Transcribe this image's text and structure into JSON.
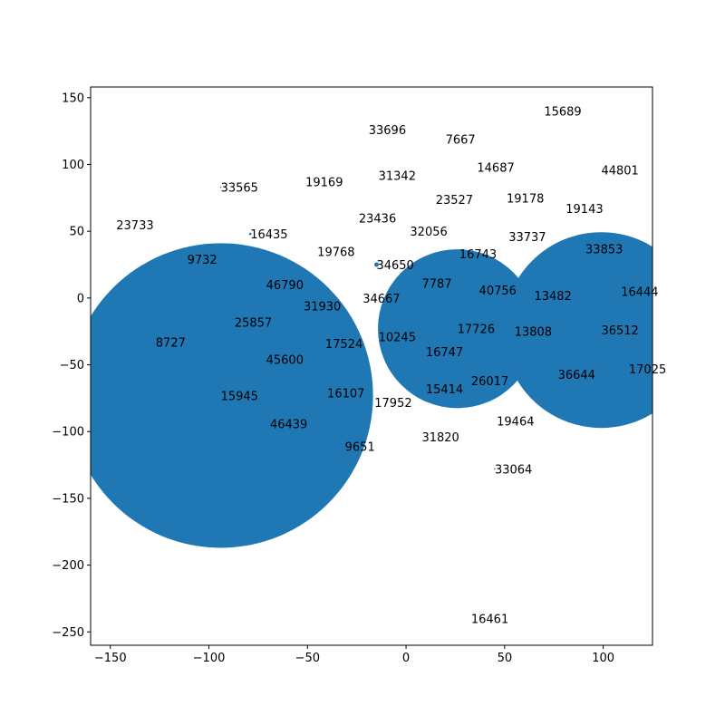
{
  "chart_data": {
    "type": "scatter",
    "title": "",
    "xlabel": "",
    "ylabel": "",
    "xlim": [
      -160,
      125
    ],
    "ylim": [
      -260,
      158
    ],
    "x_ticks": [
      -150,
      -100,
      -50,
      0,
      50,
      100
    ],
    "y_ticks": [
      150,
      100,
      50,
      0,
      -50,
      -100,
      -150,
      -200,
      -250
    ],
    "grid": false,
    "color": "#1f77b4",
    "points": [
      {
        "label": "15689",
        "x": 70,
        "y": 140,
        "size": 0
      },
      {
        "label": "33696",
        "x": -19,
        "y": 126,
        "size": 0
      },
      {
        "label": "7667",
        "x": 20,
        "y": 119,
        "size": 0
      },
      {
        "label": "44801",
        "x": 99,
        "y": 96,
        "size": 0
      },
      {
        "label": "14687",
        "x": 36,
        "y": 98,
        "size": 0
      },
      {
        "label": "31342",
        "x": -14,
        "y": 92,
        "size": 0
      },
      {
        "label": "33565",
        "x": -94,
        "y": 83,
        "size": 1
      },
      {
        "label": "19169",
        "x": -51,
        "y": 87,
        "size": 0
      },
      {
        "label": "19178",
        "x": 51,
        "y": 75,
        "size": 0
      },
      {
        "label": "23527",
        "x": 15,
        "y": 74,
        "size": 0
      },
      {
        "label": "19143",
        "x": 81,
        "y": 67,
        "size": 0
      },
      {
        "label": "23733",
        "x": -147,
        "y": 55,
        "size": 0
      },
      {
        "label": "23436",
        "x": -24,
        "y": 60,
        "size": 0
      },
      {
        "label": "16435",
        "x": -79,
        "y": 48,
        "size": 3
      },
      {
        "label": "32056",
        "x": 2,
        "y": 50,
        "size": 0
      },
      {
        "label": "33737",
        "x": 52,
        "y": 46,
        "size": 0
      },
      {
        "label": "33853",
        "x": 91,
        "y": 37,
        "size": 0
      },
      {
        "label": "19768",
        "x": -45,
        "y": 35,
        "size": 0
      },
      {
        "label": "16743",
        "x": 27,
        "y": 33,
        "size": 0
      },
      {
        "label": "9732",
        "x": -111,
        "y": 29,
        "size": 0
      },
      {
        "label": "34650",
        "x": -15,
        "y": 25,
        "size": 10
      },
      {
        "label": "46790",
        "x": -71,
        "y": 10,
        "size": 0
      },
      {
        "label": "7787",
        "x": 8,
        "y": 11,
        "size": 0
      },
      {
        "label": "40756",
        "x": 37,
        "y": 6,
        "size": 0
      },
      {
        "label": "13482",
        "x": 65,
        "y": 2,
        "size": 40
      },
      {
        "label": "16444",
        "x": 109,
        "y": 5,
        "size": 0
      },
      {
        "label": "34667",
        "x": -22,
        "y": 0,
        "size": 0
      },
      {
        "label": "31930",
        "x": -52,
        "y": -6,
        "size": 0
      },
      {
        "label": "25857",
        "x": -87,
        "y": -18,
        "size": 0
      },
      {
        "label": "17726",
        "x": 26,
        "y": -23,
        "size": 12500
      },
      {
        "label": "36512",
        "x": 99,
        "y": -24,
        "size": 19000
      },
      {
        "label": "8727",
        "x": -127,
        "y": -33,
        "size": 0
      },
      {
        "label": "13808",
        "x": 55,
        "y": -25,
        "size": 0
      },
      {
        "label": "10245",
        "x": -14,
        "y": -29,
        "size": 0
      },
      {
        "label": "17524",
        "x": -41,
        "y": -34,
        "size": 0
      },
      {
        "label": "16747",
        "x": 10,
        "y": -40,
        "size": 0
      },
      {
        "label": "45600",
        "x": -71,
        "y": -46,
        "size": 0
      },
      {
        "label": "36644",
        "x": 77,
        "y": -57,
        "size": 2
      },
      {
        "label": "17025",
        "x": 113,
        "y": -53,
        "size": 0
      },
      {
        "label": "26017",
        "x": 33,
        "y": -62,
        "size": 0
      },
      {
        "label": "15414",
        "x": 10,
        "y": -68,
        "size": 0
      },
      {
        "label": "15945",
        "x": -94,
        "y": -73,
        "size": 46000
      },
      {
        "label": "16107",
        "x": -40,
        "y": -71,
        "size": 0
      },
      {
        "label": "17952",
        "x": -16,
        "y": -78,
        "size": 0
      },
      {
        "label": "19464",
        "x": 46,
        "y": -92,
        "size": 0
      },
      {
        "label": "46439",
        "x": -69,
        "y": -94,
        "size": 0
      },
      {
        "label": "31820",
        "x": 8,
        "y": -104,
        "size": 0
      },
      {
        "label": "9651",
        "x": -31,
        "y": -111,
        "size": 0
      },
      {
        "label": "33064",
        "x": 45,
        "y": -128,
        "size": 1
      },
      {
        "label": "16461",
        "x": 33,
        "y": -240,
        "size": 0
      }
    ]
  }
}
